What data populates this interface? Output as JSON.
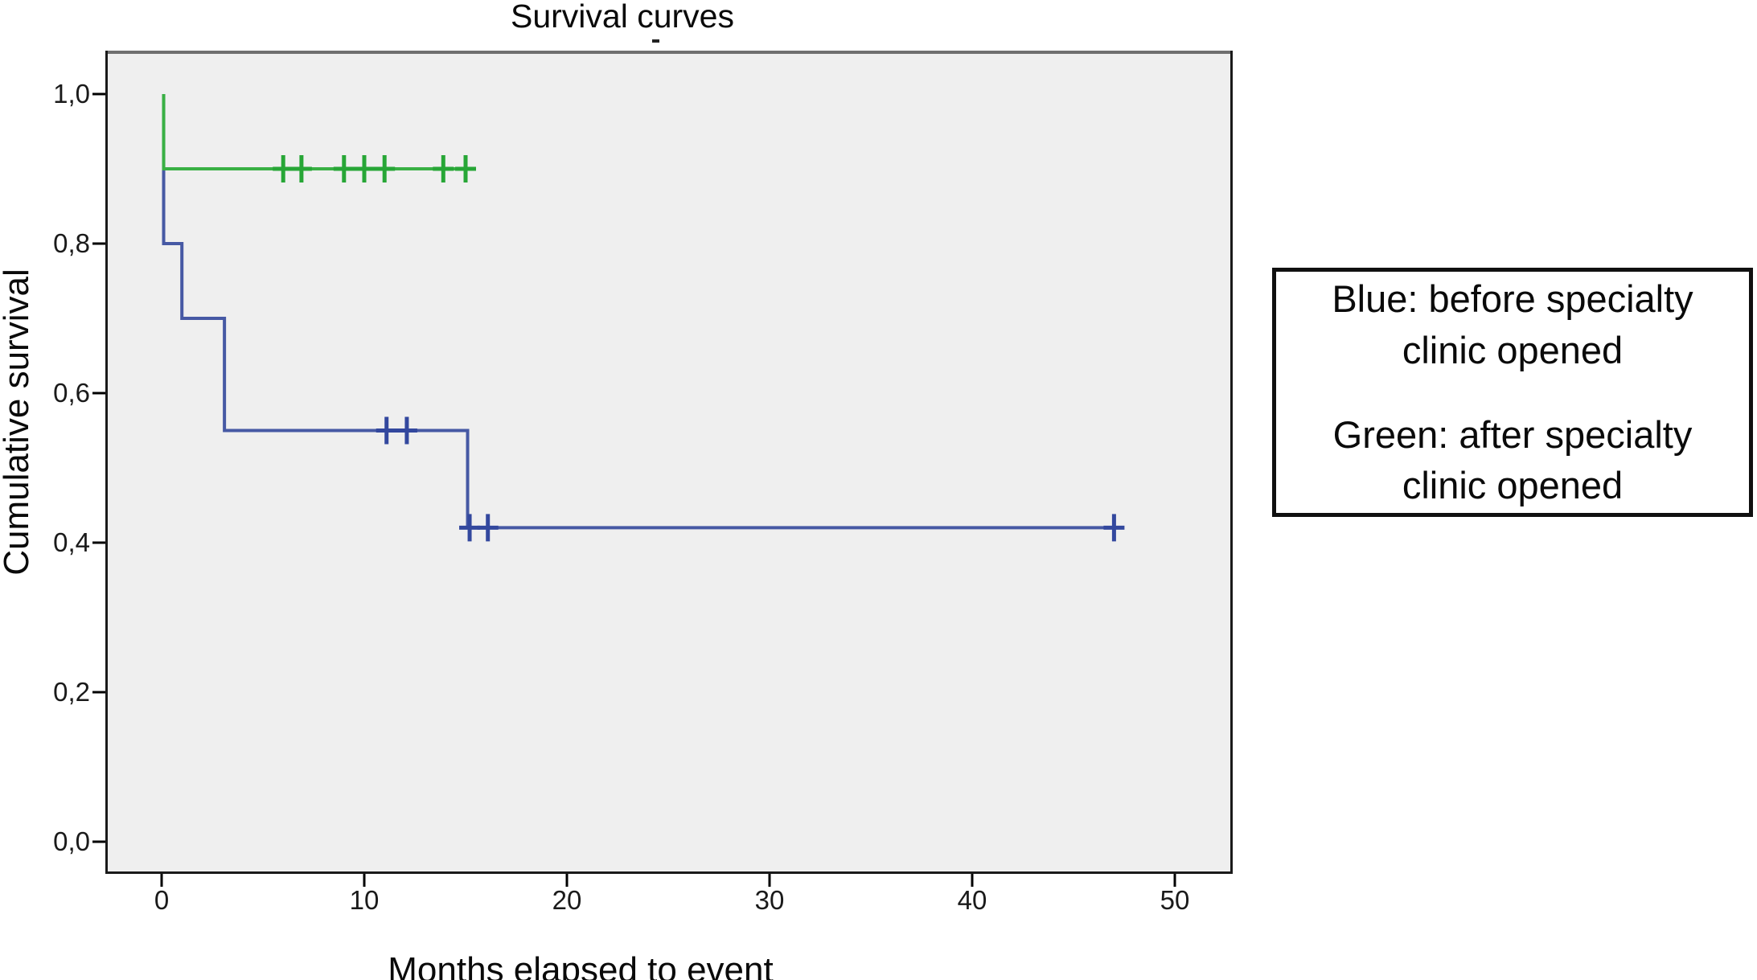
{
  "page": {
    "title": "Survival curves",
    "subtitle_mark": "-"
  },
  "legend": {
    "entries": [
      {
        "id": "blue",
        "text": "Blue: before specialty clinic opened"
      },
      {
        "id": "green",
        "text": "Green: after specialty clinic opened"
      }
    ]
  },
  "chart_data": {
    "type": "line",
    "subtype": "kaplan-meier-step",
    "title": "Survival curves",
    "xlabel": "Months elapsed to event",
    "ylabel": "Cumulative survival",
    "xlim": [
      -2.8,
      52.8
    ],
    "ylim": [
      -0.04,
      1.06
    ],
    "grid": false,
    "legend_position": "right",
    "plot_bg": "#efefef",
    "frame_top_color": "#6f6f6f",
    "frame_color": "#1a1a1a",
    "x_ticks": [
      {
        "label": "0",
        "value": 0
      },
      {
        "label": "10",
        "value": 10
      },
      {
        "label": "20",
        "value": 20
      },
      {
        "label": "30",
        "value": 30
      },
      {
        "label": "40",
        "value": 40
      },
      {
        "label": "50",
        "value": 50
      }
    ],
    "y_ticks": [
      {
        "label": "1,0",
        "value": 1.0
      },
      {
        "label": "0,8",
        "value": 0.8
      },
      {
        "label": "0,6",
        "value": 0.6
      },
      {
        "label": "0,4",
        "value": 0.4
      },
      {
        "label": "0,2",
        "value": 0.2
      },
      {
        "label": "0,0",
        "value": 0.0
      }
    ],
    "series": [
      {
        "id": "blue-before-clinic",
        "name": "before specialty clinic opened",
        "color": "#4659a4",
        "censor_color": "#33489e",
        "points": [
          [
            0.1,
            1.0
          ],
          [
            0.1,
            0.8
          ],
          [
            1.0,
            0.8
          ],
          [
            1.0,
            0.7
          ],
          [
            3.1,
            0.7
          ],
          [
            3.1,
            0.55
          ],
          [
            15.1,
            0.55
          ],
          [
            15.1,
            0.42
          ],
          [
            47.0,
            0.42
          ]
        ],
        "censors": [
          [
            11.1,
            0.55
          ],
          [
            12.1,
            0.55
          ],
          [
            15.2,
            0.42
          ],
          [
            16.1,
            0.42
          ],
          [
            47.0,
            0.42
          ]
        ]
      },
      {
        "id": "green-after-clinic",
        "name": "after specialty clinic opened",
        "color": "#39b044",
        "censor_color": "#27a636",
        "points": [
          [
            0.1,
            1.0
          ],
          [
            0.1,
            0.9
          ],
          [
            15.4,
            0.9
          ]
        ],
        "censors": [
          [
            6.0,
            0.9
          ],
          [
            6.9,
            0.9
          ],
          [
            9.0,
            0.9
          ],
          [
            10.0,
            0.9
          ],
          [
            11.0,
            0.9
          ],
          [
            13.9,
            0.9
          ],
          [
            15.0,
            0.9
          ]
        ]
      }
    ]
  }
}
